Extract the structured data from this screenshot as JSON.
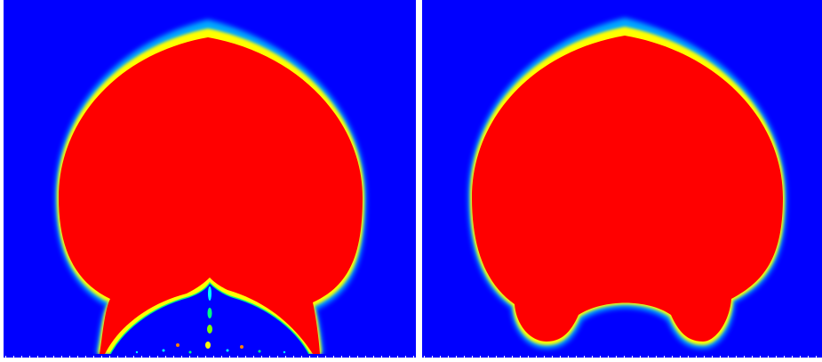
{
  "panels": [
    {
      "id": "left",
      "description_name": "simulation-frame-left",
      "colormap": [
        "#0000ff",
        "#00ffff",
        "#00ff00",
        "#ffff00",
        "#ff0000"
      ]
    },
    {
      "id": "right",
      "description_name": "simulation-frame-right",
      "colormap": [
        "#0000ff",
        "#00ffff",
        "#00ff00",
        "#ffff00",
        "#ff0000"
      ]
    }
  ]
}
